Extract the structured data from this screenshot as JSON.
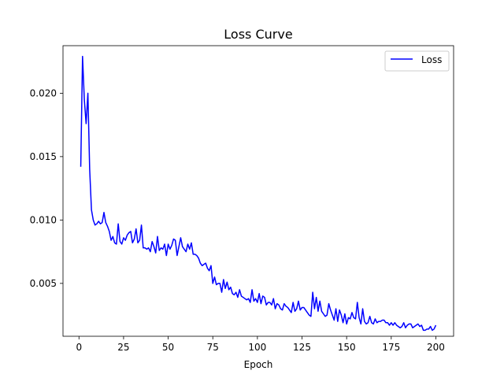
{
  "chart_data": {
    "type": "line",
    "title": "Loss Curve",
    "xlabel": "Epoch",
    "ylabel": "",
    "xlim": [
      -8.95,
      209.95
    ],
    "ylim": [
      0.00083,
      0.02375
    ],
    "xticks": [
      0,
      25,
      50,
      75,
      100,
      125,
      150,
      175,
      200
    ],
    "xtick_labels": [
      "0",
      "25",
      "50",
      "75",
      "100",
      "125",
      "150",
      "175",
      "200"
    ],
    "yticks": [
      0.005,
      0.01,
      0.015,
      0.02
    ],
    "ytick_labels": [
      "0.005",
      "0.010",
      "0.015",
      "0.020"
    ],
    "grid": false,
    "legend_position": "top-right",
    "series": [
      {
        "name": "Loss",
        "color": "#0000ff",
        "x": [
          1,
          2,
          3,
          4,
          5,
          6,
          7,
          8,
          9,
          10,
          11,
          12,
          13,
          14,
          15,
          16,
          17,
          18,
          19,
          20,
          21,
          22,
          23,
          24,
          25,
          26,
          27,
          28,
          29,
          30,
          31,
          32,
          33,
          34,
          35,
          36,
          37,
          38,
          39,
          40,
          41,
          42,
          43,
          44,
          45,
          46,
          47,
          48,
          49,
          50,
          51,
          52,
          53,
          54,
          55,
          56,
          57,
          58,
          59,
          60,
          61,
          62,
          63,
          64,
          65,
          66,
          67,
          68,
          69,
          70,
          71,
          72,
          73,
          74,
          75,
          76,
          77,
          78,
          79,
          80,
          81,
          82,
          83,
          84,
          85,
          86,
          87,
          88,
          89,
          90,
          91,
          92,
          93,
          94,
          95,
          96,
          97,
          98,
          99,
          100,
          101,
          102,
          103,
          104,
          105,
          106,
          107,
          108,
          109,
          110,
          111,
          112,
          113,
          114,
          115,
          116,
          117,
          118,
          119,
          120,
          121,
          122,
          123,
          124,
          125,
          126,
          127,
          128,
          129,
          130,
          131,
          132,
          133,
          134,
          135,
          136,
          137,
          138,
          139,
          140,
          141,
          142,
          143,
          144,
          145,
          146,
          147,
          148,
          149,
          150,
          151,
          152,
          153,
          154,
          155,
          156,
          157,
          158,
          159,
          160,
          161,
          162,
          163,
          164,
          165,
          166,
          167,
          168,
          169,
          170,
          171,
          172,
          173,
          174,
          175,
          176,
          177,
          178,
          179,
          180,
          181,
          182,
          183,
          184,
          185,
          186,
          187,
          188,
          189,
          190,
          191,
          192,
          193,
          194,
          195,
          196,
          197,
          198,
          199,
          200
        ],
        "values": [
          0.0142,
          0.0229,
          0.0195,
          0.0176,
          0.02,
          0.014,
          0.0108,
          0.01,
          0.0096,
          0.0097,
          0.0099,
          0.0097,
          0.0098,
          0.0106,
          0.0098,
          0.0095,
          0.0091,
          0.0084,
          0.0087,
          0.0082,
          0.0081,
          0.0097,
          0.0083,
          0.0081,
          0.0086,
          0.0084,
          0.0088,
          0.009,
          0.0091,
          0.0082,
          0.0085,
          0.0093,
          0.0082,
          0.0084,
          0.0096,
          0.0078,
          0.0078,
          0.0077,
          0.0078,
          0.0075,
          0.0083,
          0.0079,
          0.0074,
          0.0087,
          0.0076,
          0.0078,
          0.0077,
          0.0081,
          0.0072,
          0.0081,
          0.0077,
          0.008,
          0.0085,
          0.0084,
          0.0072,
          0.0079,
          0.0086,
          0.0079,
          0.0077,
          0.0075,
          0.0081,
          0.0077,
          0.0082,
          0.0073,
          0.0073,
          0.0072,
          0.007,
          0.0066,
          0.0064,
          0.0065,
          0.0066,
          0.0062,
          0.006,
          0.0064,
          0.005,
          0.0055,
          0.0049,
          0.005,
          0.005,
          0.0043,
          0.0053,
          0.0046,
          0.0051,
          0.0045,
          0.0047,
          0.0042,
          0.0041,
          0.0043,
          0.0039,
          0.0045,
          0.004,
          0.0039,
          0.0038,
          0.0037,
          0.0038,
          0.0035,
          0.0045,
          0.0036,
          0.0038,
          0.0035,
          0.0042,
          0.0034,
          0.004,
          0.0039,
          0.0033,
          0.0035,
          0.0035,
          0.0033,
          0.0038,
          0.003,
          0.0034,
          0.0033,
          0.003,
          0.0029,
          0.0034,
          0.0032,
          0.0031,
          0.0029,
          0.0027,
          0.0035,
          0.0028,
          0.003,
          0.0036,
          0.0029,
          0.0031,
          0.0031,
          0.0029,
          0.0027,
          0.0025,
          0.0024,
          0.0043,
          0.003,
          0.0039,
          0.0028,
          0.0036,
          0.0028,
          0.0026,
          0.0024,
          0.0025,
          0.0034,
          0.0029,
          0.0025,
          0.0021,
          0.003,
          0.002,
          0.0029,
          0.0025,
          0.0019,
          0.0026,
          0.0018,
          0.0023,
          0.0022,
          0.0027,
          0.0023,
          0.0022,
          0.0035,
          0.0023,
          0.0018,
          0.003,
          0.002,
          0.0018,
          0.0019,
          0.0024,
          0.0019,
          0.0018,
          0.0022,
          0.0019,
          0.002,
          0.002,
          0.0021,
          0.0021,
          0.0019,
          0.0019,
          0.0017,
          0.0019,
          0.0017,
          0.0019,
          0.0017,
          0.0016,
          0.0015,
          0.0016,
          0.0019,
          0.0015,
          0.0017,
          0.0018,
          0.0018,
          0.0015,
          0.0016,
          0.0017,
          0.0018,
          0.0016,
          0.0017,
          0.0013,
          0.0013,
          0.0014,
          0.0014,
          0.0016,
          0.0013,
          0.0014,
          0.0017
        ]
      }
    ]
  }
}
